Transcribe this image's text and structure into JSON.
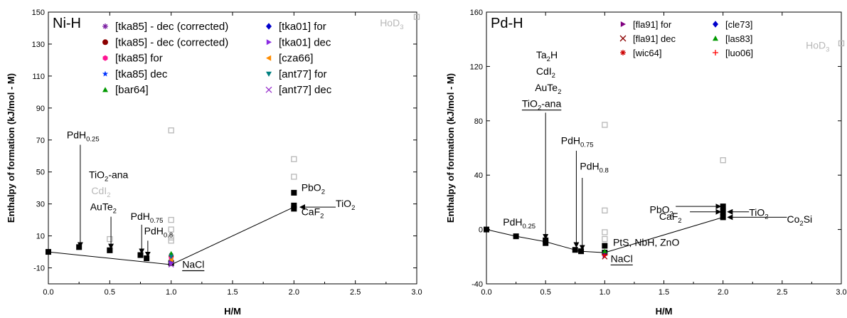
{
  "chart_data": [
    {
      "type": "scatter",
      "panel_label": "Ni-H",
      "xlabel": "H/M",
      "ylabel": "Enthalpy of formation (kJ/mol - M)",
      "xlim": [
        0,
        3.0
      ],
      "ylim": [
        -20,
        150
      ],
      "xticks": [
        0.0,
        0.5,
        1.0,
        1.5,
        2.0,
        2.5,
        3.0
      ],
      "xtick_labels": [
        "0.0",
        "0.5",
        "1.0",
        "1.5",
        "2.0",
        "2.5",
        "3.0"
      ],
      "yticks": [
        -10,
        10,
        30,
        50,
        70,
        90,
        110,
        130,
        150
      ],
      "ytick_labels": [
        "-10",
        "10",
        "30",
        "50",
        "70",
        "90",
        "110",
        "130",
        "150"
      ],
      "legend": [
        {
          "label": "[tka85] - dec (corrected)",
          "marker": "asterisk",
          "color": "#7b1fa2"
        },
        {
          "label": "[tka85] - dec (corrected)",
          "marker": "circle",
          "color": "#8b0000"
        },
        {
          "label": "[tka85] for",
          "marker": "hexagon",
          "color": "#ff1493"
        },
        {
          "label": "[tka85] dec",
          "marker": "star",
          "color": "#0033ff"
        },
        {
          "label": "[bar64]",
          "marker": "triangle-up",
          "color": "#009900"
        },
        {
          "label": "[tka01] for",
          "marker": "diamond",
          "color": "#0000cc"
        },
        {
          "label": "[tka01] dec",
          "marker": "triangle-right",
          "color": "#8a2be2"
        },
        {
          "label": "[cza66]",
          "marker": "triangle-left",
          "color": "#ff8c00"
        },
        {
          "label": "[ant77] for",
          "marker": "triangle-down",
          "color": "#008080"
        },
        {
          "label": "[ant77] dec",
          "marker": "cross",
          "color": "#9932cc"
        }
      ],
      "hull_line": [
        [
          0,
          0
        ],
        [
          1.0,
          -8
        ],
        [
          2.0,
          28
        ]
      ],
      "structure_points": [
        {
          "x": 0.0,
          "y": 0
        },
        {
          "x": 0.25,
          "y": 3
        },
        {
          "x": 0.5,
          "y": 1
        },
        {
          "x": 0.75,
          "y": -2
        },
        {
          "x": 0.8,
          "y": -4
        },
        {
          "x": 1.0,
          "y": -7
        },
        {
          "x": 2.0,
          "y": 27
        },
        {
          "x": 2.0,
          "y": 29
        },
        {
          "x": 2.0,
          "y": 37
        }
      ],
      "gray_points": [
        {
          "x": 0.5,
          "y": 8
        },
        {
          "x": 0.5,
          "y": 1
        },
        {
          "x": 1.0,
          "y": 76
        },
        {
          "x": 1.0,
          "y": 20
        },
        {
          "x": 1.0,
          "y": 14
        },
        {
          "x": 1.0,
          "y": 9
        },
        {
          "x": 1.0,
          "y": 7
        },
        {
          "x": 2.0,
          "y": 58
        },
        {
          "x": 2.0,
          "y": 47
        },
        {
          "x": 3.0,
          "y": 147
        }
      ],
      "experimental_points": [
        {
          "x": 1.0,
          "y": -2,
          "series": 0
        },
        {
          "x": 1.0,
          "y": -3,
          "series": 1
        },
        {
          "x": 1.0,
          "y": -4,
          "series": 2
        },
        {
          "x": 1.0,
          "y": -5,
          "series": 3
        },
        {
          "x": 1.0,
          "y": -1,
          "series": 4
        },
        {
          "x": 1.0,
          "y": -6,
          "series": 5
        },
        {
          "x": 1.0,
          "y": -7,
          "series": 6
        },
        {
          "x": 1.0,
          "y": -5,
          "series": 7
        },
        {
          "x": 1.0,
          "y": -3,
          "series": 8
        },
        {
          "x": 1.0,
          "y": -8,
          "series": 9
        }
      ],
      "annotations": [
        {
          "base": "PdH",
          "sub": "0.25",
          "x": 0.15,
          "y": 71,
          "arrow": [
            0.26,
            67,
            0.26,
            3
          ]
        },
        {
          "base": "TiO",
          "sub": "2",
          "after": "-ana",
          "x": 0.33,
          "y": 46
        },
        {
          "base": "CdI",
          "sub": "2",
          "x": 0.35,
          "y": 36,
          "gray": true
        },
        {
          "base": "AuTe",
          "sub": "2",
          "x": 0.34,
          "y": 26,
          "arrow": [
            0.51,
            22,
            0.51,
            2
          ]
        },
        {
          "base": "PdH",
          "sub": "0.75",
          "x": 0.67,
          "y": 20,
          "arrow": [
            0.76,
            17,
            0.76,
            -1
          ]
        },
        {
          "base": "PdH",
          "sub": "0.8",
          "x": 0.78,
          "y": 11,
          "arrow": [
            0.81,
            7,
            0.81,
            -3
          ]
        },
        {
          "base": "NaCl",
          "x": 1.09,
          "y": -10,
          "underline": true
        },
        {
          "base": "PbO",
          "sub": "2",
          "x": 2.06,
          "y": 38
        },
        {
          "base": "CaF",
          "sub": "2",
          "x": 2.06,
          "y": 23
        },
        {
          "base": "TiO",
          "sub": "2",
          "x": 2.34,
          "y": 28,
          "arrow": [
            2.34,
            28,
            2.05,
            28
          ]
        },
        {
          "base": "HoD",
          "sub": "3",
          "x": 2.7,
          "y": 141,
          "gray": true
        }
      ]
    },
    {
      "type": "scatter",
      "panel_label": "Pd-H",
      "xlabel": "H/M",
      "ylabel": "Enthalpy of formation (kJ/mol - M)",
      "xlim": [
        0,
        3.0
      ],
      "ylim": [
        -40,
        160
      ],
      "xticks": [
        0.0,
        0.5,
        1.0,
        1.5,
        2.0,
        2.5,
        3.0
      ],
      "xtick_labels": [
        "0.0",
        "0.5",
        "1.0",
        "1.5",
        "2.0",
        "2.5",
        "3.0"
      ],
      "yticks": [
        -40,
        0,
        40,
        80,
        120,
        160
      ],
      "ytick_labels": [
        "-40",
        "0",
        "40",
        "80",
        "120",
        "160"
      ],
      "legend": [
        {
          "label": "[fla91] for",
          "marker": "triangle-right",
          "color": "#800080"
        },
        {
          "label": "[fla91] dec",
          "marker": "x",
          "color": "#8b0000"
        },
        {
          "label": "[wic64]",
          "marker": "asterisk",
          "color": "#cc0000"
        },
        {
          "label": "[cle73]",
          "marker": "diamond",
          "color": "#0000cc"
        },
        {
          "label": "[las83]",
          "marker": "triangle-up",
          "color": "#009900"
        },
        {
          "label": "[luo06]",
          "marker": "plus",
          "color": "#ff0000"
        }
      ],
      "hull_line": [
        [
          0,
          0
        ],
        [
          0.25,
          -5
        ],
        [
          0.5,
          -9
        ],
        [
          0.75,
          -15
        ],
        [
          0.8,
          -16
        ],
        [
          1.0,
          -17
        ],
        [
          2.0,
          9
        ]
      ],
      "structure_points": [
        {
          "x": 0.0,
          "y": 0
        },
        {
          "x": 0.25,
          "y": -5
        },
        {
          "x": 0.5,
          "y": -8
        },
        {
          "x": 0.5,
          "y": -10
        },
        {
          "x": 0.75,
          "y": -15
        },
        {
          "x": 0.8,
          "y": -16
        },
        {
          "x": 1.0,
          "y": -12
        },
        {
          "x": 1.0,
          "y": -17
        },
        {
          "x": 2.0,
          "y": 9
        },
        {
          "x": 2.0,
          "y": 13
        },
        {
          "x": 2.0,
          "y": 17
        }
      ],
      "gray_points": [
        {
          "x": 1.0,
          "y": 77
        },
        {
          "x": 1.0,
          "y": 14
        },
        {
          "x": 1.0,
          "y": -2
        },
        {
          "x": 1.0,
          "y": -7
        },
        {
          "x": 2.0,
          "y": 51
        },
        {
          "x": 3.0,
          "y": 137
        }
      ],
      "experimental_points": [
        {
          "x": 1.0,
          "y": -19,
          "series": 0
        },
        {
          "x": 1.0,
          "y": -20,
          "series": 1
        },
        {
          "x": 1.0,
          "y": -18,
          "series": 2
        },
        {
          "x": 1.0,
          "y": -17,
          "series": 3
        },
        {
          "x": 1.0,
          "y": -16,
          "series": 4
        },
        {
          "x": 1.0,
          "y": -19,
          "series": 5
        }
      ],
      "annotations": [
        {
          "base": "Ta",
          "sub": "2",
          "after": "H",
          "x": 0.42,
          "y": 126
        },
        {
          "base": "CdI",
          "sub": "2",
          "x": 0.42,
          "y": 114
        },
        {
          "base": "AuTe",
          "sub": "2",
          "x": 0.41,
          "y": 102
        },
        {
          "base": "TiO",
          "sub": "2",
          "after": "-ana",
          "x": 0.3,
          "y": 90,
          "underline": true,
          "arrow": [
            0.5,
            86,
            0.5,
            -7
          ]
        },
        {
          "base": "PdH",
          "sub": "0.75",
          "x": 0.63,
          "y": 63,
          "arrow": [
            0.76,
            58,
            0.76,
            -13
          ]
        },
        {
          "base": "PdH",
          "sub": "0.8",
          "x": 0.79,
          "y": 44,
          "arrow": [
            0.81,
            38,
            0.81,
            -15
          ]
        },
        {
          "base": "PdH",
          "sub": "0.25",
          "x": 0.14,
          "y": 3
        },
        {
          "base": "PtS, NbH, ZnO",
          "x": 1.07,
          "y": -12
        },
        {
          "base": "NaCl",
          "x": 1.05,
          "y": -24,
          "underline": true
        },
        {
          "base": "PbO",
          "sub": "2",
          "x": 1.38,
          "y": 12,
          "arrow": [
            1.6,
            17,
            1.98,
            17
          ]
        },
        {
          "base": "CaF",
          "sub": "2",
          "x": 1.46,
          "y": 7,
          "arrow": [
            1.72,
            13,
            1.98,
            13
          ]
        },
        {
          "base": "TiO",
          "sub": "2",
          "x": 2.22,
          "y": 10,
          "arrow": [
            2.22,
            13,
            2.04,
            13
          ]
        },
        {
          "base": "Co",
          "sub": "2",
          "after": "Si",
          "x": 2.54,
          "y": 5,
          "arrow": [
            2.54,
            9,
            2.04,
            9
          ]
        },
        {
          "base": "HoD",
          "sub": "3",
          "x": 2.7,
          "y": 133,
          "gray": true
        }
      ]
    }
  ]
}
